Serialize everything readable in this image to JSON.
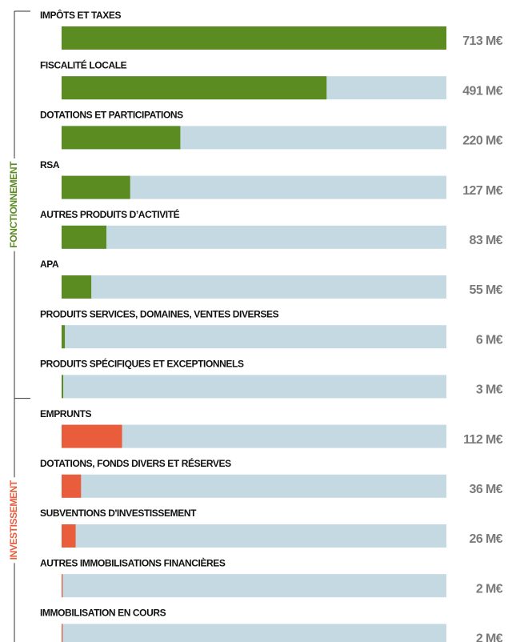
{
  "chart_data": {
    "type": "bar",
    "xlim": [
      0,
      713
    ],
    "track_color": "#c5d9e2",
    "groups": [
      {
        "name": "FONCTIONNEMENT",
        "color": "#5b8c22",
        "categories": [
          "IMPÔTS ET TAXES",
          "FISCALITÉ LOCALE",
          "DOTATIONS ET PARTICIPATIONS",
          "RSA",
          "AUTRES PRODUITS D’ACTIVITÉ",
          "APA",
          "PRODUITS SERVICES, DOMAINES, VENTES DIVERSES",
          "PRODUITS SPÉCIFIQUES ET EXCEPTIONNELS"
        ],
        "values": [
          713,
          491,
          220,
          127,
          83,
          55,
          6,
          3
        ],
        "value_labels": [
          "713 M€",
          "491 M€",
          "220 M€",
          "127 M€",
          "83 M€",
          "55 M€",
          "6 M€",
          "3 M€"
        ]
      },
      {
        "name": "INVESTISSEMENT",
        "color": "#e95c3c",
        "categories": [
          "EMPRUNTS",
          "DOTATIONS, FONDS DIVERS ET RÉSERVES",
          "SUBVENTIONS D'INVESTISSEMENT",
          "AUTRES IMMOBILISATIONS FINANCIÈRES",
          "IMMOBILISATION EN COURS"
        ],
        "values": [
          112,
          36,
          26,
          2,
          2
        ],
        "value_labels": [
          "112 M€",
          "36 M€",
          "26 M€",
          "2 M€",
          "2 M€"
        ]
      }
    ]
  }
}
